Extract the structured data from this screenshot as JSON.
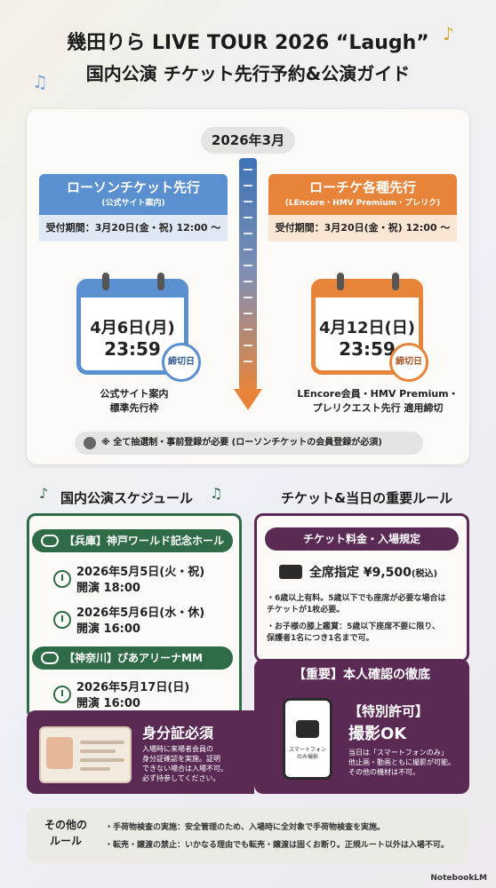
{
  "header": {
    "title_line1": "幾田りら LIVE TOUR 2026 “Laugh”",
    "title_line2": "国内公演 チケット先行予約&公演ガイド"
  },
  "timeline": {
    "month": "2026年3月",
    "left": {
      "name": "ローソンチケット先行",
      "sub": "(公式サイト案内)",
      "period": "受付期間：3月20日(金・祝) 12:00 〜",
      "date": "4月6日(月)",
      "time": "23:59",
      "badge": "締切日",
      "caption_line1": "公式サイト案内",
      "caption_line2": "標準先行枠"
    },
    "right": {
      "name": "ローチケ各種先行",
      "sub": "(LEncore・HMV Premium・プレリク)",
      "period": "受付期間：3月20日(金・祝) 12:00 〜",
      "date": "4月12日(日)",
      "time": "23:59",
      "badge": "締切日",
      "caption_line1": "LEncore会員・HMV Premium・",
      "caption_line2": "プレリクエスト先行 適用締切"
    },
    "note": "※ 全て抽選制・事前登録が必要 (ローソンチケットの会員登録が必須)"
  },
  "schedule": {
    "title": "国内公演スケジュール",
    "venues": [
      {
        "name": "【兵庫】神戸ワールド記念ホール"
      },
      {
        "name": "【神奈川】ぴあアリーナMM"
      }
    ],
    "shows": [
      {
        "date": "2026年5月5日(火・祝)",
        "open": "開演 18:00"
      },
      {
        "date": "2026年5月6日(水・休)",
        "open": "開演 16:00"
      },
      {
        "date": "2026年5月17日(日)",
        "open": "開演 16:00"
      }
    ]
  },
  "rules": {
    "title": "チケット&当日の重要ルール",
    "pill": "チケット料金・入場規定",
    "price": "全席指定 ¥9,500",
    "tax": "(税込)",
    "bullet1_l1": "・6歳以上有料。5歳以下でも座席が必要な場合は",
    "bullet1_l2": "チケットが1枚必要。",
    "bullet2_l1": "・お子様の膝上鑑賞：5歳以下座席不要に限り、",
    "bullet2_l2": "保護者1名につき1名まで可。"
  },
  "identity": {
    "head": "【重要】本人確認の徹底",
    "id_title": "身分証必須",
    "id_desc_l1": "入場時に来場者会員の",
    "id_desc_l2": "身分証確認を実施。証明",
    "id_desc_l3": "できない場合は入場不可。",
    "id_desc_l4": "必ず持参してください。",
    "phone_label_l1": "スマートフォン",
    "phone_label_l2": "のみ撮影",
    "perm_head": "【特別許可】",
    "perm_ok": "撮影OK",
    "perm_desc_l1": "当日は「スマートフォンのみ」",
    "perm_desc_l2": "他止画・動画ともに撮影が可能。",
    "perm_desc_l3": "その他の機材は不可。"
  },
  "other": {
    "label_l1": "その他の",
    "label_l2": "ルール",
    "item1": "・手荷物検査の実施：安全管理のため、入場時に全対象で手荷物検査を実施。",
    "item2": "・転売・譲渡の禁止：いかなる理由でも転売・譲渡は固くお断り。正規ルート以外は入場不可。"
  },
  "brand": "NotebookLM",
  "colors": {
    "blue": "#5a8fd0",
    "orange": "#e8843a",
    "green": "#2f6b46",
    "purple": "#5a2a55"
  }
}
